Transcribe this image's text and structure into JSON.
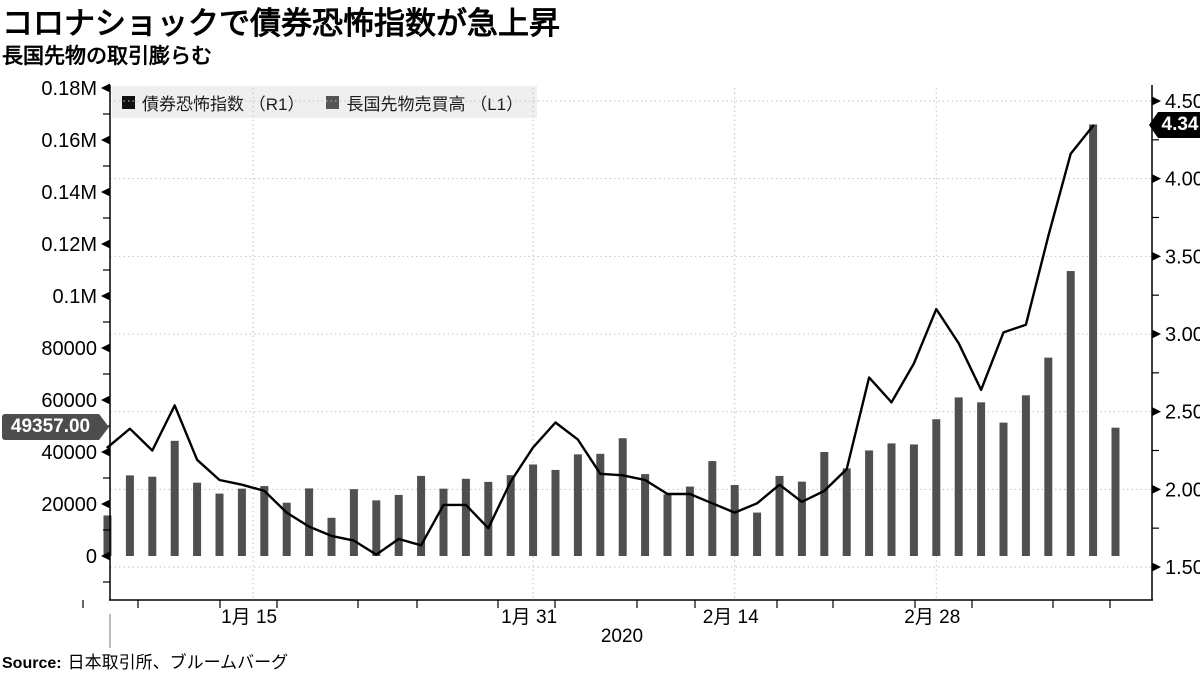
{
  "header": {
    "title": "コロナショックで債券恐怖指数が急上昇",
    "subtitle": "長国先物の取引膨らむ"
  },
  "legend": [
    {
      "label": "債券恐怖指数 （R1）",
      "color": "#111111"
    },
    {
      "label": "長国先物売買高 （L1）",
      "color": "#555555"
    }
  ],
  "tags": {
    "left": {
      "value": "49357.00",
      "color": "#4d4d4d"
    },
    "right": {
      "value": "4.34",
      "color": "#000000"
    }
  },
  "source": {
    "label": "Source:",
    "text": "日本取引所、ブルームバーグ"
  },
  "chart_data": {
    "type": "combo",
    "title": "コロナショックで債券恐怖指数が急上昇",
    "subtitle": "長国先物の取引膨らむ",
    "x_axis": {
      "year_label": "2020",
      "tick_labels": [
        "1月 15",
        "1月 31",
        "2月 14",
        "2月 28"
      ],
      "tick_positions_index": [
        6.5,
        19,
        28,
        37
      ],
      "num_points": 46
    },
    "y_left": {
      "ticks": [
        0,
        20000,
        40000,
        60000,
        80000,
        100000,
        120000,
        140000,
        160000,
        180000
      ],
      "tick_labels": [
        "0",
        "20000",
        "40000",
        "60000",
        "80000",
        "0.1M",
        "0.12M",
        "0.14M",
        "0.16M",
        "0.18M"
      ],
      "range": [
        0,
        180000
      ],
      "minor_step": 10000,
      "last_value_tag": "49357.00"
    },
    "y_right": {
      "ticks": [
        1.5,
        2.0,
        2.5,
        3.0,
        3.5,
        4.0,
        4.5
      ],
      "tick_labels": [
        "1.50",
        "2.00",
        "2.50",
        "3.00",
        "3.50",
        "4.00",
        "4.50"
      ],
      "range": [
        1.5,
        4.5
      ],
      "minor_step": 0.25,
      "last_value_tag": "4.34"
    },
    "grid": {
      "horizontal_at_right_ticks": true,
      "vertical_at_x_ticks": true
    },
    "series": [
      {
        "name": "債券恐怖指数 （R1）",
        "type": "line",
        "axis": "right",
        "color": "#000000",
        "values": [
          2.27,
          2.39,
          2.25,
          2.54,
          2.19,
          2.06,
          2.03,
          1.99,
          1.85,
          1.76,
          1.7,
          1.67,
          1.58,
          1.68,
          1.64,
          1.9,
          1.9,
          1.75,
          2.05,
          2.27,
          2.43,
          2.32,
          2.1,
          2.09,
          2.06,
          1.97,
          1.97,
          1.91,
          1.85,
          1.91,
          2.03,
          1.92,
          1.99,
          2.13,
          2.72,
          2.56,
          2.81,
          3.16,
          2.94,
          2.64,
          3.01,
          3.06,
          3.63,
          4.16,
          4.34
        ]
      },
      {
        "name": "長国先物売買高 （L1）",
        "type": "bar",
        "axis": "left",
        "color": "#4f4f4f",
        "values": [
          15600,
          31000,
          30500,
          44300,
          28200,
          24000,
          25900,
          26900,
          20500,
          26000,
          14700,
          25700,
          21400,
          23500,
          30800,
          25900,
          29700,
          28500,
          31100,
          35200,
          33100,
          39100,
          39300,
          45300,
          31500,
          23700,
          26700,
          36500,
          27300,
          16700,
          30800,
          28600,
          40000,
          33700,
          40600,
          43300,
          42900,
          52600,
          61000,
          59100,
          51300,
          61800,
          76300,
          109600,
          166000,
          49357
        ]
      }
    ]
  }
}
